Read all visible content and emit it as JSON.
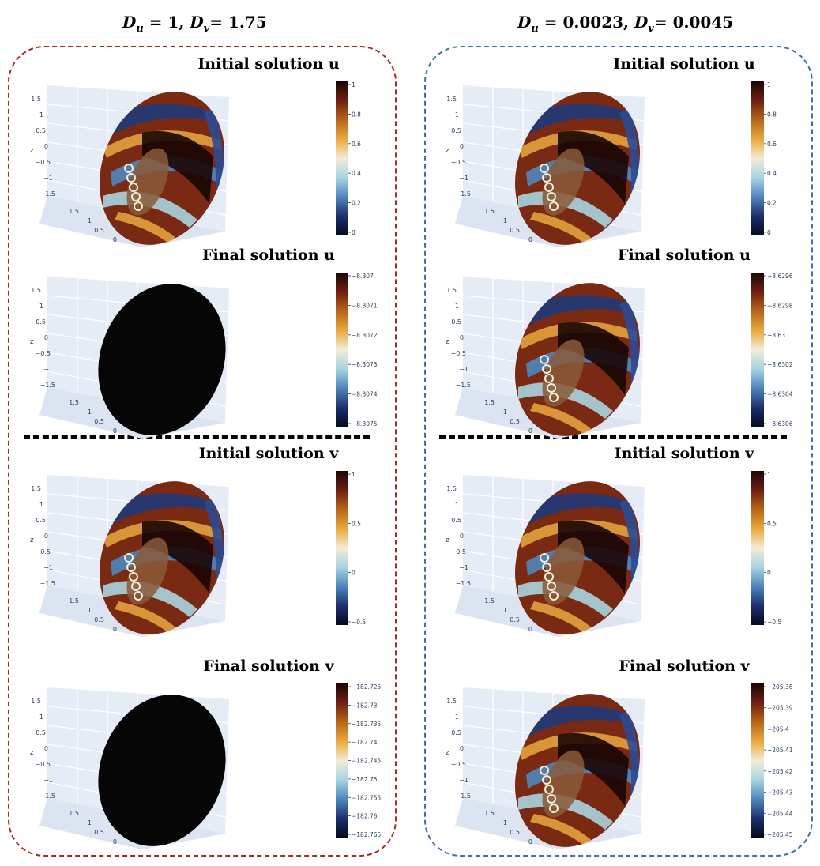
{
  "columns": [
    {
      "header": {
        "d_u_label": "D",
        "d_u_sub": "u",
        "d_u_value": " = 1,  ",
        "d_v_label": "D",
        "d_v_sub": "v",
        "d_v_value": "= 1.75"
      },
      "border_color": "#a62a1e",
      "panels": [
        {
          "title": "Initial solution u",
          "surface": "pattern",
          "ticks": [
            "1",
            "0.8",
            "0.6",
            "0.4",
            "0.2",
            "0"
          ]
        },
        {
          "title": "Final solution u",
          "surface": "uniform-black",
          "ticks": [
            "−8.307",
            "−8.3071",
            "−8.3072",
            "−8.3073",
            "−8.3074",
            "−8.3075"
          ]
        },
        {
          "title": "Initial solution v",
          "surface": "pattern",
          "ticks": [
            "1",
            "0.5",
            "0",
            "−0.5"
          ]
        },
        {
          "title": "Final solution v",
          "surface": "uniform-black",
          "ticks": [
            "−182.725",
            "−182.73",
            "−182.735",
            "−182.74",
            "−182.745",
            "−182.75",
            "−182.755",
            "−182.76",
            "−182.765"
          ]
        }
      ]
    },
    {
      "header": {
        "d_u_label": "D",
        "d_u_sub": "u",
        "d_u_value": " = 0.0023,  ",
        "d_v_label": "D",
        "d_v_sub": "v",
        "d_v_value": "= 0.0045"
      },
      "border_color": "#3e6fb0",
      "panels": [
        {
          "title": "Initial solution u",
          "surface": "pattern",
          "ticks": [
            "1",
            "0.8",
            "0.6",
            "0.4",
            "0.2",
            "0"
          ]
        },
        {
          "title": "Final solution u",
          "surface": "pattern",
          "ticks": [
            "−8.6296",
            "−8.6298",
            "−8.63",
            "−8.6302",
            "−8.6304",
            "−8.6306"
          ]
        },
        {
          "title": "Initial solution v",
          "surface": "pattern",
          "ticks": [
            "1",
            "0.5",
            "0",
            "−0.5"
          ]
        },
        {
          "title": "Final solution v",
          "surface": "pattern",
          "ticks": [
            "−205.38",
            "−205.39",
            "−205.4",
            "−205.41",
            "−205.42",
            "−205.43",
            "−205.44",
            "−205.45"
          ]
        }
      ]
    }
  ],
  "axis_labels": {
    "z_title": "z",
    "z_ticks": [
      "1.5",
      "1",
      "0.5",
      "0",
      "−0.5",
      "−1",
      "−1.5"
    ],
    "y_ticks": [
      "1.5",
      "1",
      "0.5",
      "0"
    ]
  },
  "colormap": [
    "#f5f0e6",
    "#e8a93a",
    "#b8651a",
    "#6e1f12",
    "#1a0606"
  ],
  "colormap_cool": [
    "#f2ecd8",
    "#a8d4e0",
    "#4f86be",
    "#1d2f6e",
    "#050a1e"
  ]
}
